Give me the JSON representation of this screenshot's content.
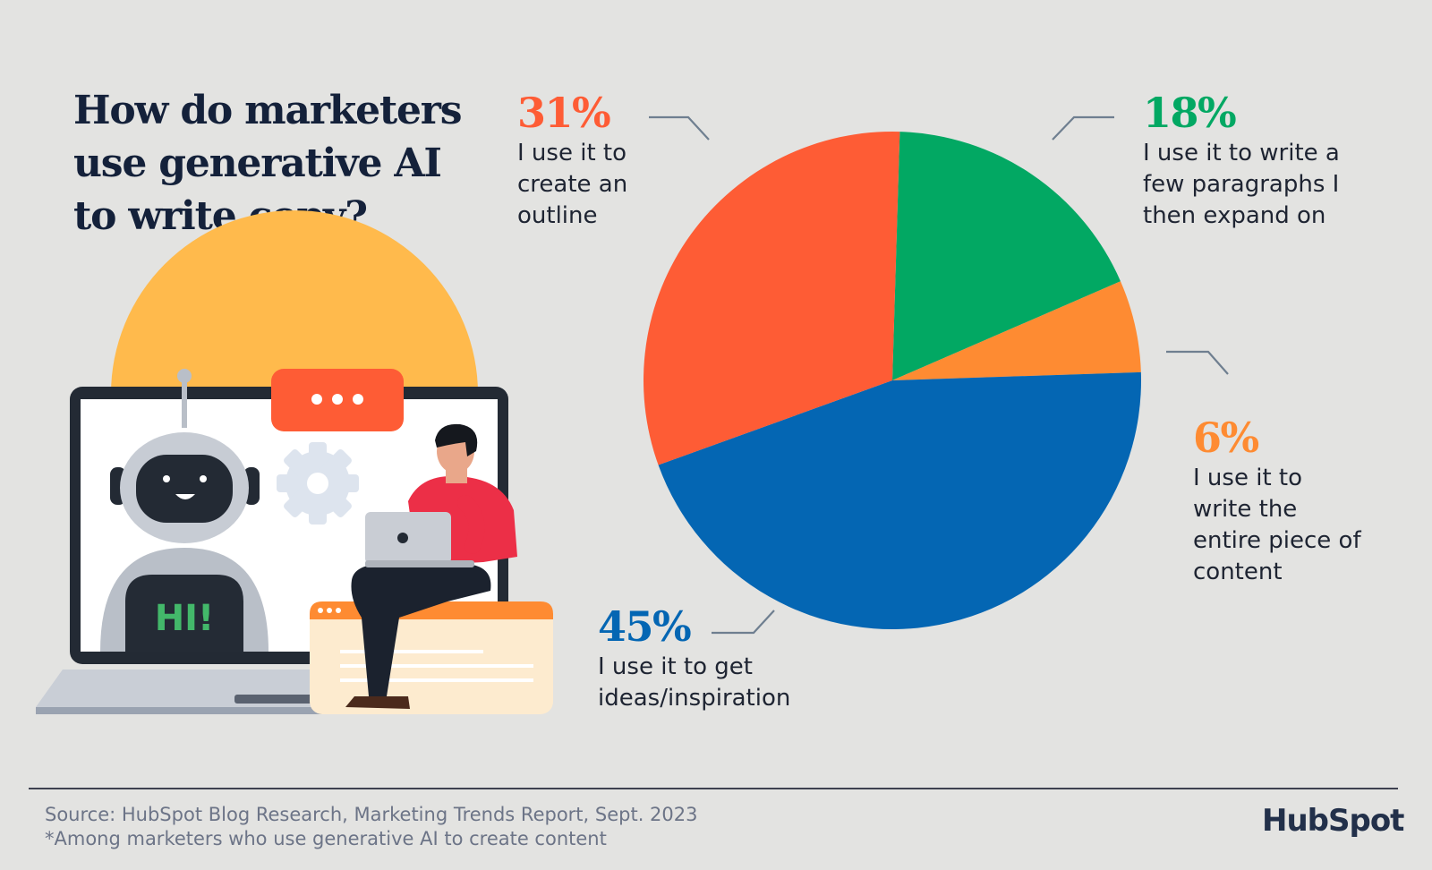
{
  "header": {
    "title": "How do marketers use generative AI to write copy?"
  },
  "chart_data": {
    "type": "pie",
    "slices": [
      {
        "label": "I use it to create an outline",
        "value": 31,
        "value_label": "31%",
        "color": "#fe5c35"
      },
      {
        "label": "I use it to write a few paragraphs I then expand on",
        "value": 18,
        "value_label": "18%",
        "color": "#02a863"
      },
      {
        "label": "I use it to write the entire piece of content",
        "value": 6,
        "value_label": "6%",
        "color": "#fe8b32"
      },
      {
        "label": "I use it to get ideas/inspiration",
        "value": 45,
        "value_label": "45%",
        "color": "#0466b3"
      }
    ]
  },
  "illustration": {
    "screen_text": "HI!"
  },
  "footer": {
    "source": "Source: HubSpot Blog Research, Marketing Trends Report, Sept. 2023",
    "note": "*Among marketers who use generative AI to create content",
    "logo_text": "HubSpot"
  }
}
